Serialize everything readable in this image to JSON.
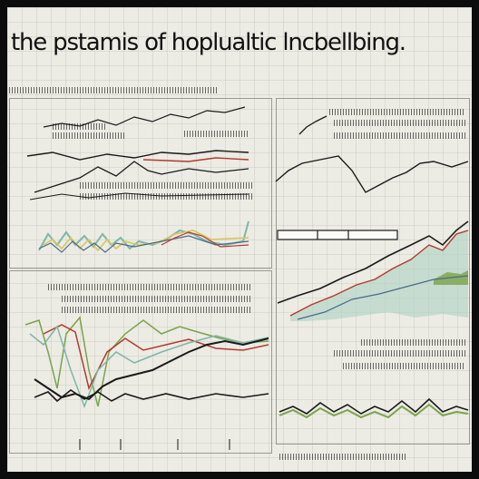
{
  "title": "the pstamis of hoplualtic lncbellbing.",
  "colors": {
    "background": "#ecebe4",
    "frame": "#0c0c0c",
    "ink": "#1a1a1a",
    "red": "#b23a2e",
    "green": "#7aa34a",
    "teal": "#7fb6a8",
    "yellow": "#d9c65a"
  }
}
